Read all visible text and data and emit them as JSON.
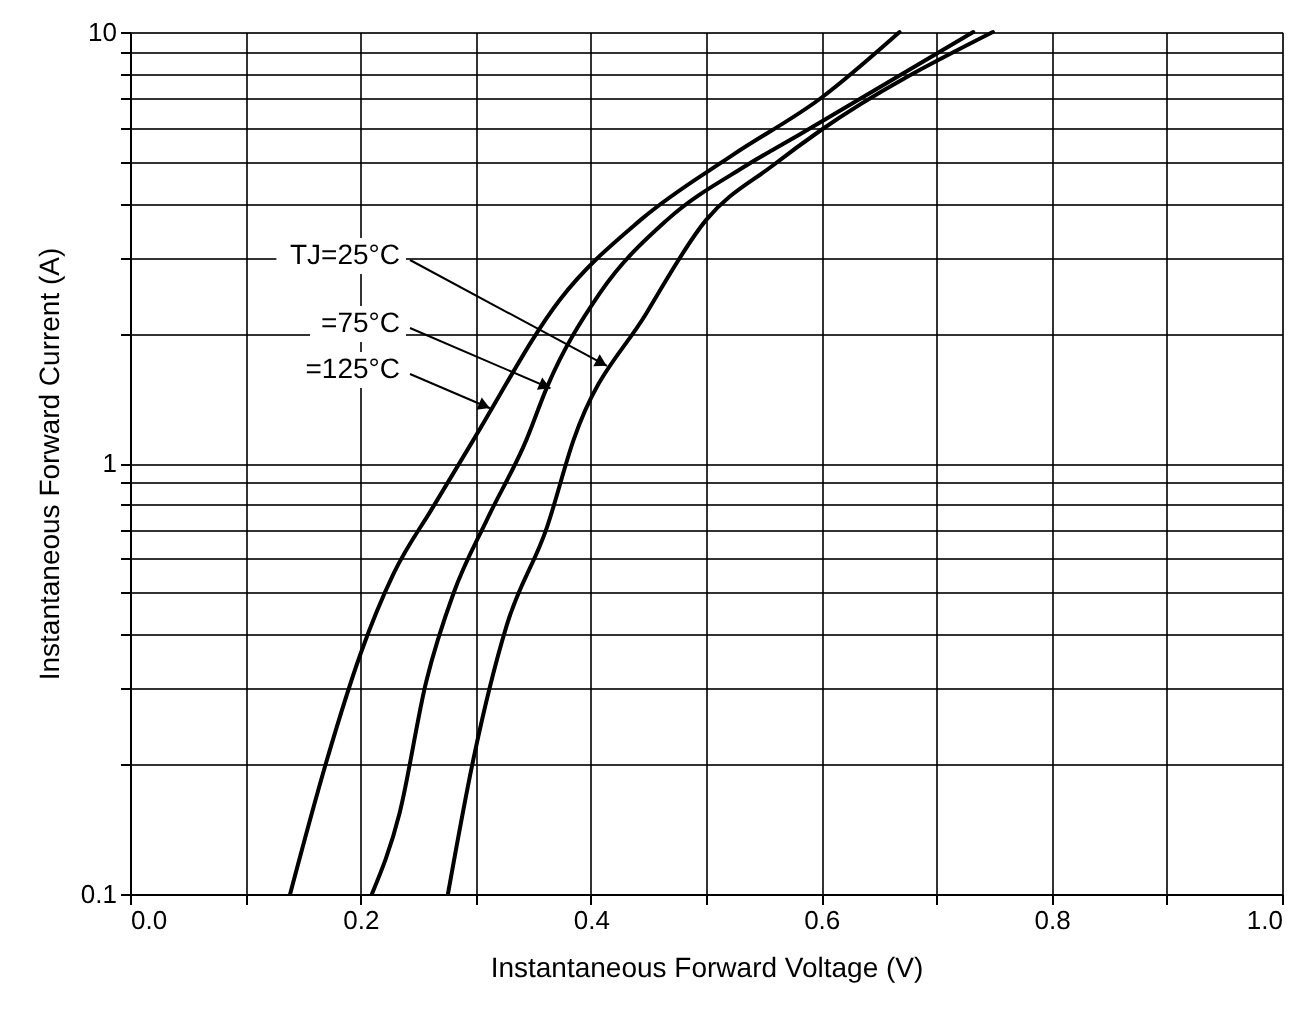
{
  "chart_data": {
    "type": "line",
    "xlabel": "Instantaneous Forward Voltage (V)",
    "ylabel": "Instantaneous Forward Current (A)",
    "series": [
      {
        "color": "#000000",
        "x": [
          0.139,
          0.171,
          0.2,
          0.229,
          0.263,
          0.298,
          0.373,
          0.443,
          0.524,
          0.599,
          0.668
        ],
        "values": [
          0.1,
          0.205,
          0.36,
          0.555,
          0.79,
          1.13,
          2.39,
          3.66,
          5.2,
          7.0,
          10
        ]
      },
      {
        "color": "#000000",
        "x": [
          0.21,
          0.234,
          0.257,
          0.281,
          0.31,
          0.344,
          0.362,
          0.408,
          0.466,
          0.535,
          0.582,
          0.732
        ],
        "values": [
          0.1,
          0.154,
          0.31,
          0.5,
          0.74,
          1.13,
          1.5,
          2.48,
          3.66,
          4.9,
          5.8,
          10
        ]
      },
      {
        "color": "#000000",
        "x": [
          0.276,
          0.298,
          0.327,
          0.362,
          0.385,
          0.448,
          0.5,
          0.558,
          0.599,
          0.749
        ],
        "values": [
          0.1,
          0.205,
          0.42,
          0.71,
          1.13,
          2.22,
          3.66,
          4.9,
          5.9,
          10
        ]
      }
    ],
    "annotations": [
      {
        "text": "TJ=25°C",
        "x": 0.414,
        "y": 1.68
      },
      {
        "text": "=75°C",
        "x": 0.365,
        "y": 1.49
      },
      {
        "text": "=125°C",
        "x": 0.3125,
        "y": 1.34
      }
    ],
    "xlim": [
      0,
      1
    ],
    "ylim": [
      0.1,
      10
    ],
    "log": "y",
    "grid": true,
    "line_style": "solid",
    "marker": "none",
    "xticks": [
      {
        "value": 0,
        "label": "0.0"
      },
      {
        "value": 0.1,
        "label": null
      },
      {
        "value": 0.2,
        "label": "0.2"
      },
      {
        "value": 0.3,
        "label": null
      },
      {
        "value": 0.4,
        "label": "0.4"
      },
      {
        "value": 0.5,
        "label": null
      },
      {
        "value": 0.6,
        "label": "0.6"
      },
      {
        "value": 0.7,
        "label": null
      },
      {
        "value": 0.8,
        "label": "0.8"
      },
      {
        "value": 0.9,
        "label": null
      },
      {
        "value": 1,
        "label": "1.0"
      }
    ],
    "yticks": [
      0.1,
      {
        "value": 0.2,
        "label": null
      },
      {
        "value": 0.3,
        "label": null
      },
      {
        "value": 0.4,
        "label": null
      },
      {
        "value": 0.5,
        "label": null
      },
      {
        "value": 0.6,
        "label": null
      },
      {
        "value": 0.7,
        "label": null
      },
      {
        "value": 0.8,
        "label": null
      },
      {
        "value": 0.9,
        "label": null
      },
      1,
      {
        "value": 2,
        "label": null
      },
      {
        "value": 3,
        "label": null
      },
      {
        "value": 4,
        "label": null
      },
      {
        "value": 5,
        "label": null
      },
      {
        "value": 6,
        "label": null
      },
      {
        "value": 7,
        "label": null
      },
      {
        "value": 8,
        "label": null
      },
      {
        "value": 9,
        "label": null
      },
      10
    ]
  }
}
